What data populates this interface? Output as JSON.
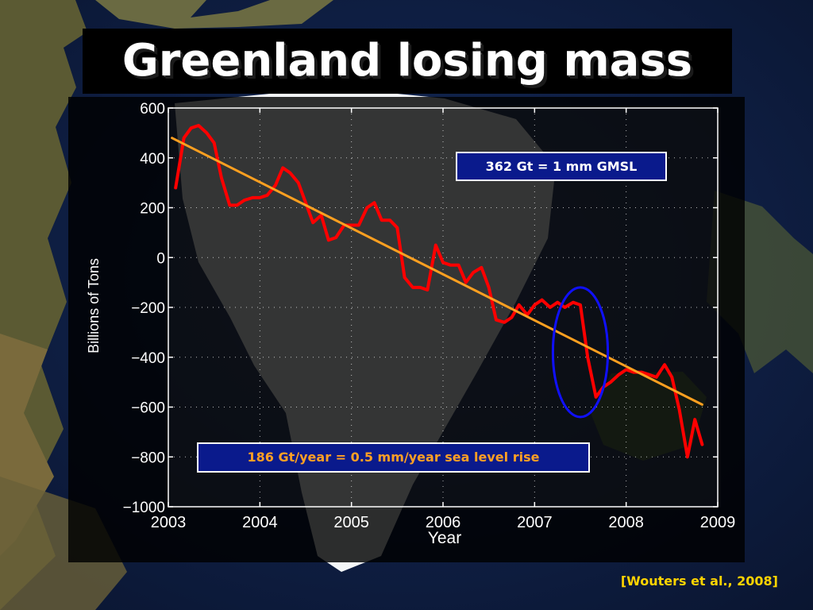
{
  "slide": {
    "title": "Greenland losing mass",
    "citation": "[Wouters et al., 2008]"
  },
  "chart_data": {
    "type": "line",
    "title": "",
    "xlabel": "Year",
    "ylabel": "Billions of Tons",
    "xlim": [
      2003,
      2009
    ],
    "ylim": [
      -1000,
      600
    ],
    "x_ticks": [
      2003,
      2004,
      2005,
      2006,
      2007,
      2008,
      2009
    ],
    "y_ticks": [
      600,
      400,
      200,
      0,
      -200,
      -400,
      -600,
      -800,
      -1000
    ],
    "y_tick_labels": [
      "600",
      "400",
      "200",
      "0",
      "−200",
      "−400",
      "−600",
      "−800",
      "−1000"
    ],
    "grid": true,
    "series": [
      {
        "color": "#ff0000",
        "x": [
          2003.08,
          2003.17,
          2003.25,
          2003.33,
          2003.42,
          2003.5,
          2003.58,
          2003.67,
          2003.75,
          2003.83,
          2003.92,
          2004.0,
          2004.08,
          2004.17,
          2004.25,
          2004.33,
          2004.42,
          2004.5,
          2004.58,
          2004.67,
          2004.75,
          2004.83,
          2004.92,
          2005.0,
          2005.08,
          2005.17,
          2005.25,
          2005.33,
          2005.42,
          2005.5,
          2005.58,
          2005.67,
          2005.75,
          2005.83,
          2005.92,
          2006.0,
          2006.08,
          2006.17,
          2006.25,
          2006.33,
          2006.42,
          2006.5,
          2006.58,
          2006.67,
          2006.75,
          2006.83,
          2006.92,
          2007.0,
          2007.08,
          2007.17,
          2007.25,
          2007.33,
          2007.42,
          2007.5,
          2007.58,
          2007.67,
          2007.75,
          2007.83,
          2007.92,
          2008.0,
          2008.08,
          2008.17,
          2008.25,
          2008.33,
          2008.42,
          2008.5,
          2008.58,
          2008.67,
          2008.75,
          2008.83
        ],
        "y": [
          280,
          480,
          520,
          530,
          500,
          460,
          320,
          210,
          210,
          230,
          240,
          240,
          250,
          290,
          360,
          340,
          300,
          220,
          140,
          170,
          70,
          80,
          130,
          130,
          130,
          200,
          220,
          150,
          150,
          120,
          -80,
          -120,
          -120,
          -130,
          50,
          -20,
          -30,
          -30,
          -100,
          -60,
          -40,
          -120,
          -250,
          -260,
          -240,
          -190,
          -230,
          -190,
          -170,
          -200,
          -180,
          -200,
          -180,
          -190,
          -400,
          -560,
          -520,
          -500,
          -470,
          -450,
          -460,
          -460,
          -470,
          -480,
          -430,
          -480,
          -610,
          -800,
          -650,
          -750
        ]
      },
      {
        "color": "#ffa020",
        "x": [
          2003.04,
          2008.83
        ],
        "y": [
          480,
          -590
        ]
      }
    ],
    "annotations": [
      {
        "text": "362 Gt = 1 mm GMSL"
      },
      {
        "text": "186 Gt/year = 0.5 mm/year sea level rise"
      }
    ],
    "highlight": {
      "shape": "ellipse",
      "color": "#1010ff",
      "center": [
        2007.5,
        -380
      ],
      "rx_years": 0.3,
      "ry_tons": 260
    }
  }
}
